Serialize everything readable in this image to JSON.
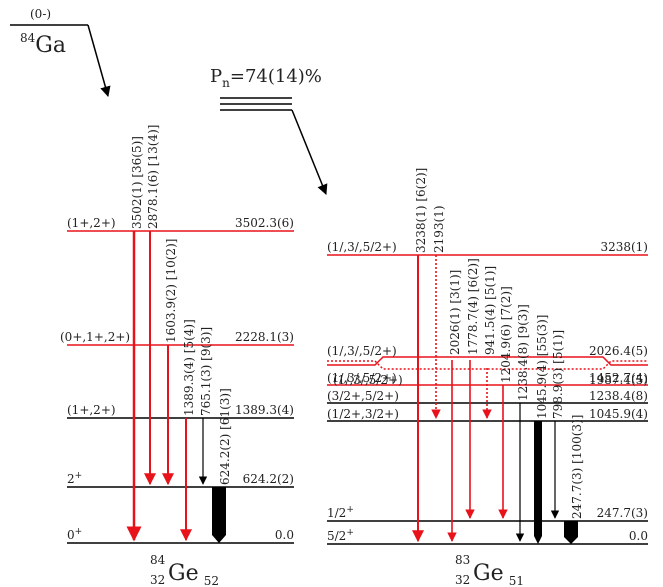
{
  "parent": {
    "spin": "(0-)",
    "mass": "84",
    "symbol": "Ga"
  },
  "neutron_branch": {
    "base": "P",
    "sub": "n",
    "value": "=74(14)%"
  },
  "daughters": [
    {
      "id": "ge84",
      "mass": "84",
      "z": "32",
      "symbol": "Ge",
      "n": "52",
      "levels": [
        {
          "spin": "0",
          "spin_sup": "+",
          "energy": "0.0",
          "line_color": "#000000"
        },
        {
          "spin": "2",
          "spin_sup": "+",
          "energy": "624.2(2)",
          "line_color": "#000000"
        },
        {
          "spin": "(1+,2+)",
          "spin_sup": "",
          "energy": "1389.3(4)",
          "line_color": "#000000"
        },
        {
          "spin": "(0+,1+,2+)",
          "spin_sup": "",
          "energy": "2228.1(3)",
          "line_color": "#e8121b"
        },
        {
          "spin": "(1+,2+)",
          "spin_sup": "",
          "energy": "3502.3(6)",
          "line_color": "#e8121b"
        }
      ],
      "transitions": [
        {
          "label": "3502(1) [36(5)]",
          "color": "#e8121b",
          "width": 2.5
        },
        {
          "label": "2878.1(6) [13(4)]",
          "color": "#e8121b",
          "width": 2
        },
        {
          "label": "1603.9(2) [10(2)]",
          "color": "#e8121b",
          "width": 2
        },
        {
          "label": "1389.3(4) [5(4)]",
          "color": "#e8121b",
          "width": 2
        },
        {
          "label": "765.1(3) [9(3)]",
          "color": "#000000",
          "width": 1.2
        },
        {
          "label": "624.2(2) [61(3)]",
          "color": "#000000",
          "width": 12
        }
      ]
    },
    {
      "id": "ge83",
      "mass": "83",
      "z": "32",
      "symbol": "Ge",
      "n": "51",
      "levels": [
        {
          "spin": "5/2",
          "spin_sup": "+",
          "energy": "0.0",
          "line_color": "#000000"
        },
        {
          "spin": "1/2",
          "spin_sup": "+",
          "energy": "247.7(3)",
          "line_color": "#000000"
        },
        {
          "spin": "(1/2+,3/2+)",
          "spin_sup": "",
          "energy": "1045.9(4)",
          "line_color": "#000000"
        },
        {
          "spin": "(3/2+,5/2+)",
          "spin_sup": "",
          "energy": "1238.4(8)",
          "line_color": "#000000"
        },
        {
          "spin": "(1/,3/,5/2+)",
          "spin_sup": "",
          "energy": "1452.7(4)",
          "line_color": "#e8121b"
        },
        {
          "spin": "(1/,3/,5/2+)",
          "spin_sup": "",
          "energy": "1987.4(5)",
          "line_color": "#e8121b"
        },
        {
          "spin": "(1/,3/,5/2+)",
          "spin_sup": "",
          "energy": "2026.4(5)",
          "line_color": "#e8121b"
        },
        {
          "spin": "(1/,3/,5/2+)",
          "spin_sup": "",
          "energy": "3238(1)",
          "line_color": "#e8121b"
        }
      ],
      "transitions": [
        {
          "label": "3238(1) [6(2)]",
          "color": "#e8121b",
          "width": 2
        },
        {
          "label": "2193(1)",
          "color": "#e8121b",
          "width": 1.6,
          "dotted": true
        },
        {
          "label": "2026(1) [3(1)]",
          "color": "#e8121b",
          "width": 1.6
        },
        {
          "label": "1778.7(4) [6(2)]",
          "color": "#e8121b",
          "width": 1.6
        },
        {
          "label": "941.5(4) [5(1)]",
          "color": "#e8121b",
          "width": 1.6,
          "dotted": true
        },
        {
          "label": "1204.9(6) [7(2)]",
          "color": "#e8121b",
          "width": 1.6
        },
        {
          "label": "1238.4(8) [9(3)]",
          "color": "#000000",
          "width": 1.2
        },
        {
          "label": "1045.9(4) [55(3)]",
          "color": "#000000",
          "width": 8
        },
        {
          "label": "798.9(3) [5(1)]",
          "color": "#000000",
          "width": 1.2
        },
        {
          "label": "247.7(3) [100(3)]",
          "color": "#000000",
          "width": 14
        }
      ]
    }
  ]
}
